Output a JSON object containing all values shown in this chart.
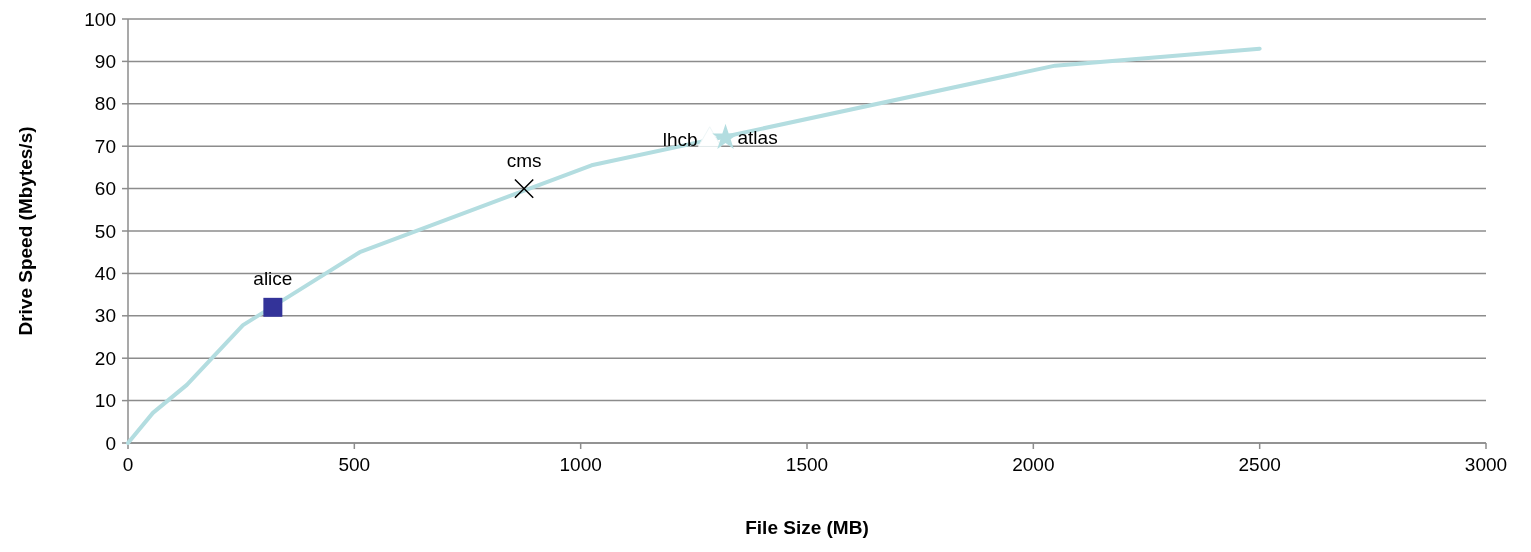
{
  "chart_data": {
    "type": "line",
    "xlabel": "File Size (MB)",
    "ylabel": "Drive Speed (Mbytes/s)",
    "xlim": [
      0,
      3000
    ],
    "xticks": [
      0,
      500,
      1000,
      1500,
      2000,
      2500,
      3000
    ],
    "ylim": [
      0,
      100
    ],
    "yticks": [
      0,
      10,
      20,
      30,
      40,
      50,
      60,
      70,
      80,
      90,
      100
    ],
    "grid": "y",
    "series": [
      {
        "color": "#b3dde0",
        "marker": "none",
        "x": [
          0,
          55,
          130,
          254,
          512,
          1024,
          2048,
          2500
        ],
        "values": [
          0,
          7.1,
          13.7,
          27.8,
          45,
          65.5,
          89,
          93
        ]
      },
      {
        "type": "scatter",
        "name": "alice",
        "color": "#333399",
        "marker": "square",
        "x": [
          320
        ],
        "values": [
          32
        ]
      },
      {
        "type": "scatter",
        "name": "cms",
        "color": "#000000",
        "marker": "cross",
        "x": [
          875
        ],
        "values": [
          60
        ]
      },
      {
        "type": "scatter",
        "name": "lhcb",
        "color": "#ffffff",
        "marker": "triangle",
        "x": [
          1285
        ],
        "values": [
          71.5
        ]
      },
      {
        "type": "scatter",
        "name": "atlas",
        "color": "#b3dde0",
        "marker": "star",
        "x": [
          1320
        ],
        "values": [
          72
        ]
      }
    ]
  }
}
